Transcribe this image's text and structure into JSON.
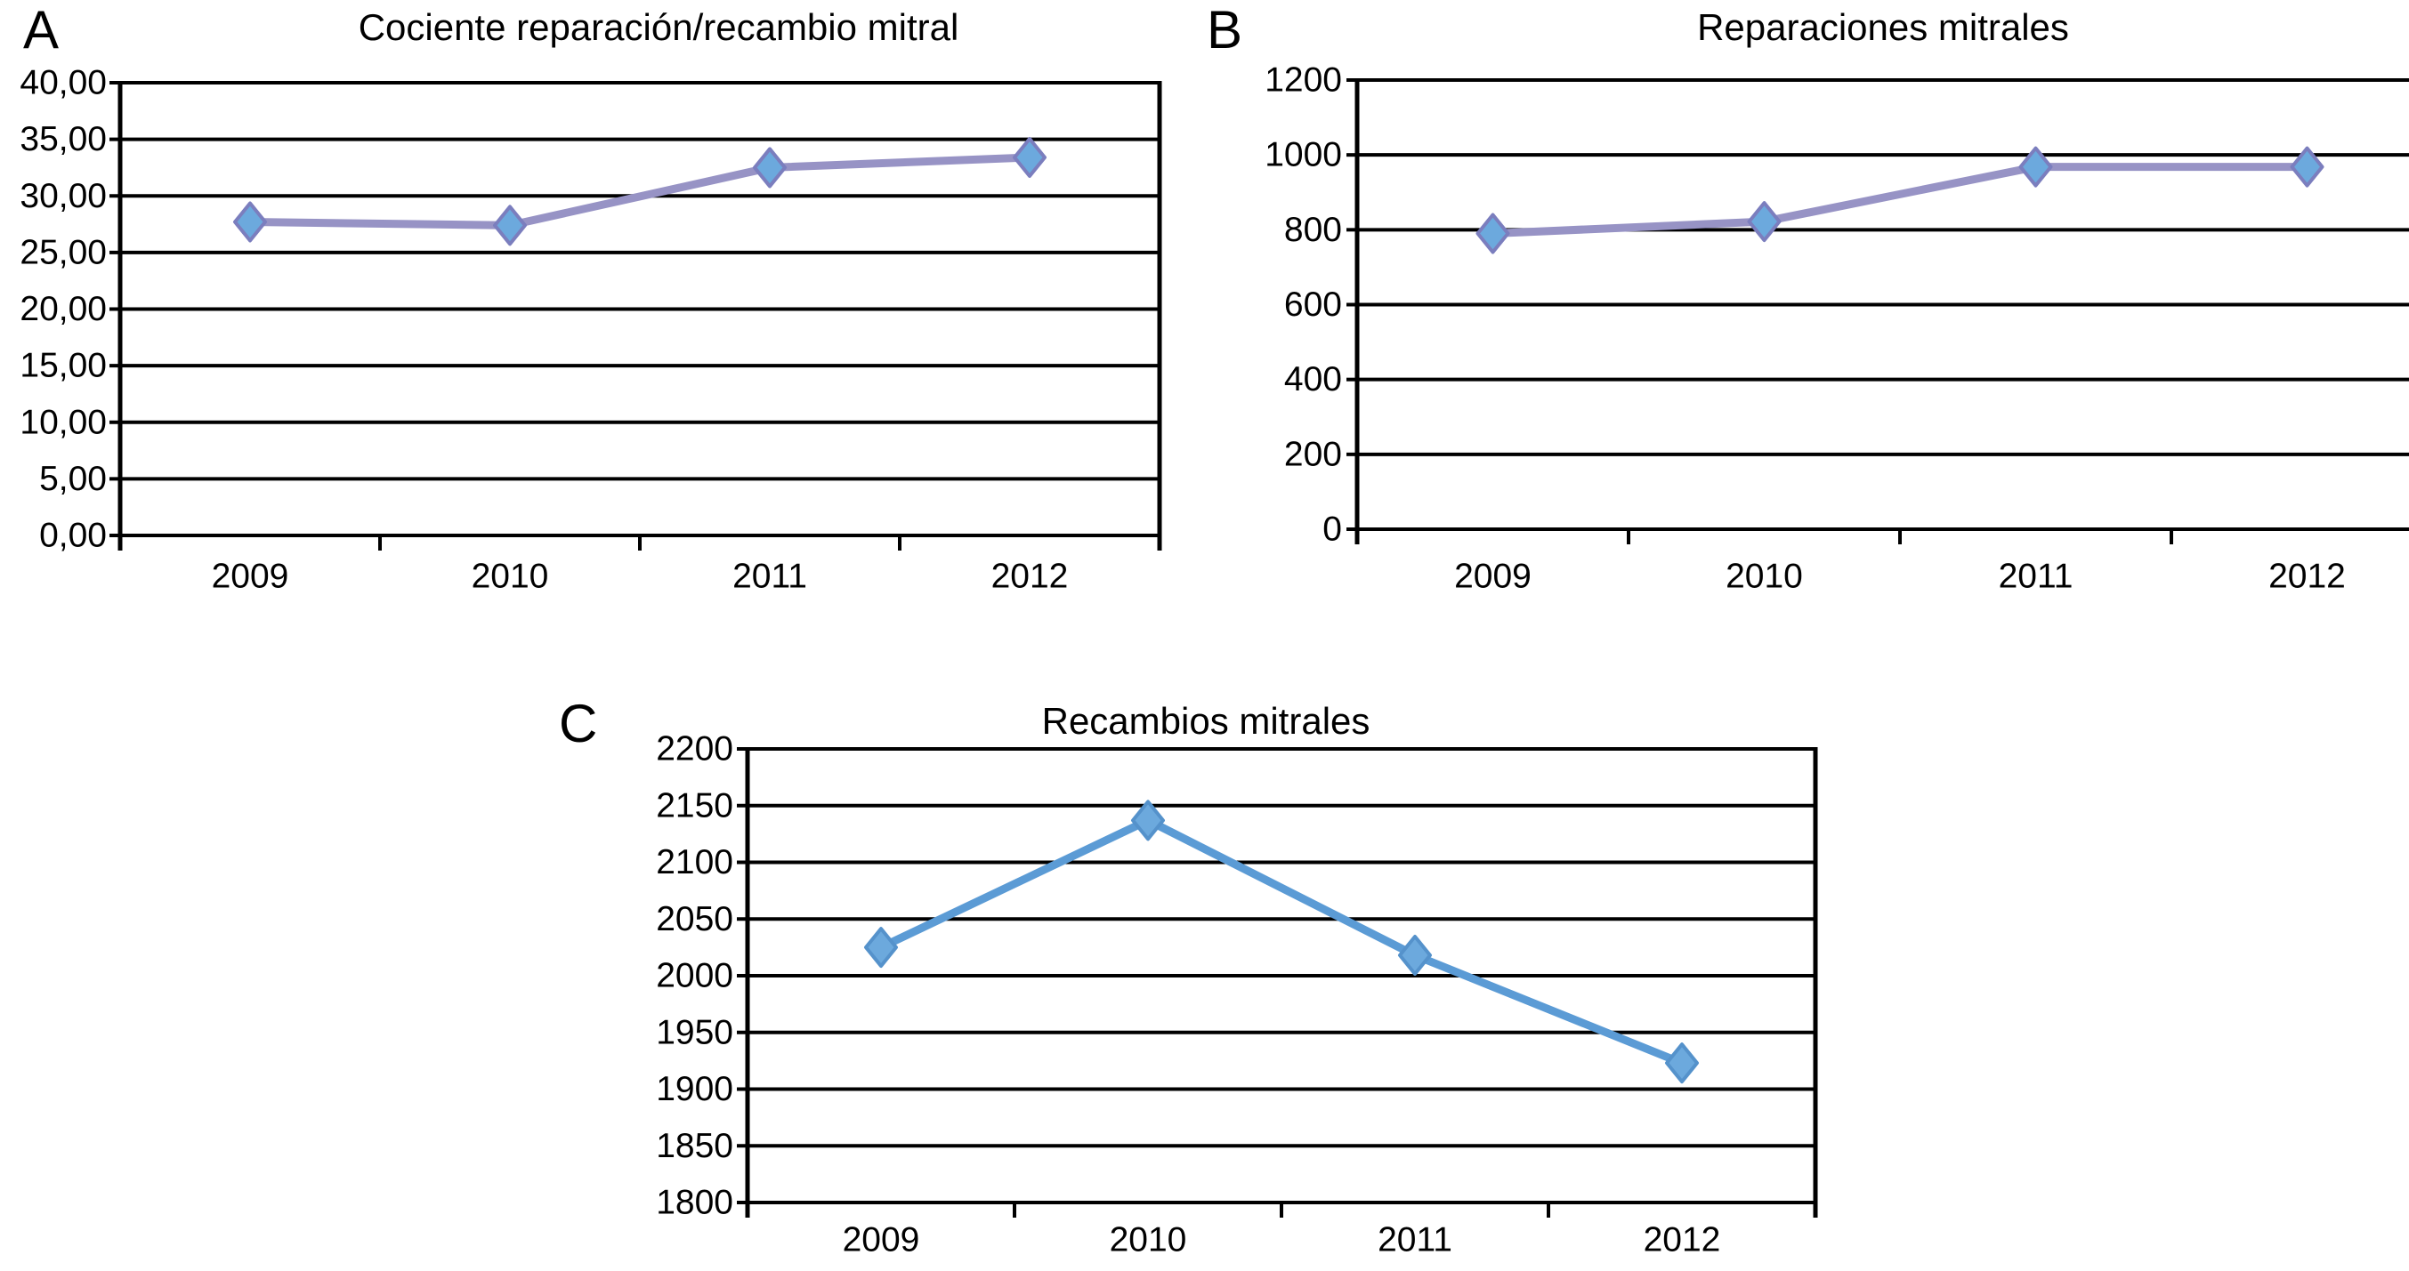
{
  "figure": {
    "background": "#FFFFFF",
    "grid_color": "#000000",
    "text_color": "#000000"
  },
  "chart_data": [
    {
      "type": "line",
      "panel_label": "A",
      "title": "Cociente reparación/recambio mitral",
      "categories": [
        "2009",
        "2010",
        "2011",
        "2012"
      ],
      "values": [
        27.7,
        27.4,
        32.5,
        33.4
      ],
      "ylim": [
        0,
        40
      ],
      "y_step": 5,
      "y_tick_labels": [
        "40,00",
        "35,00",
        "30,00",
        "25,00",
        "20,00",
        "15,00",
        "10,00",
        "5,00",
        "0,00"
      ],
      "xlabel": "",
      "ylabel": "",
      "grid": true,
      "legend": null,
      "marker": "diamond",
      "line_color": "#9793C5",
      "marker_fill": "#6CA9DD",
      "marker_stroke": "#7B7EBE"
    },
    {
      "type": "line",
      "panel_label": "B",
      "title": "Reparaciones mitrales",
      "categories": [
        "2009",
        "2010",
        "2011",
        "2012"
      ],
      "values": [
        790,
        822,
        968,
        968
      ],
      "ylim": [
        0,
        1200
      ],
      "y_step": 200,
      "y_tick_labels": [
        "1200",
        "1000",
        "800",
        "600",
        "400",
        "200",
        "0"
      ],
      "xlabel": "",
      "ylabel": "",
      "grid": true,
      "legend": null,
      "marker": "diamond",
      "line_color": "#9793C5",
      "marker_fill": "#6CA9DD",
      "marker_stroke": "#7B7EBE"
    },
    {
      "type": "line",
      "panel_label": "C",
      "title": "Recambios mitrales",
      "categories": [
        "2009",
        "2010",
        "2011",
        "2012"
      ],
      "values": [
        2025,
        2137,
        2018,
        1923
      ],
      "ylim": [
        1800,
        2200
      ],
      "y_step": 50,
      "y_tick_labels": [
        "2200",
        "2150",
        "2100",
        "2050",
        "2000",
        "1950",
        "1900",
        "1850",
        "1800"
      ],
      "xlabel": "",
      "ylabel": "",
      "grid": true,
      "legend": null,
      "marker": "diamond",
      "line_color": "#5B9BD5",
      "marker_fill": "#6CA9DD",
      "marker_stroke": "#5592CB"
    }
  ]
}
